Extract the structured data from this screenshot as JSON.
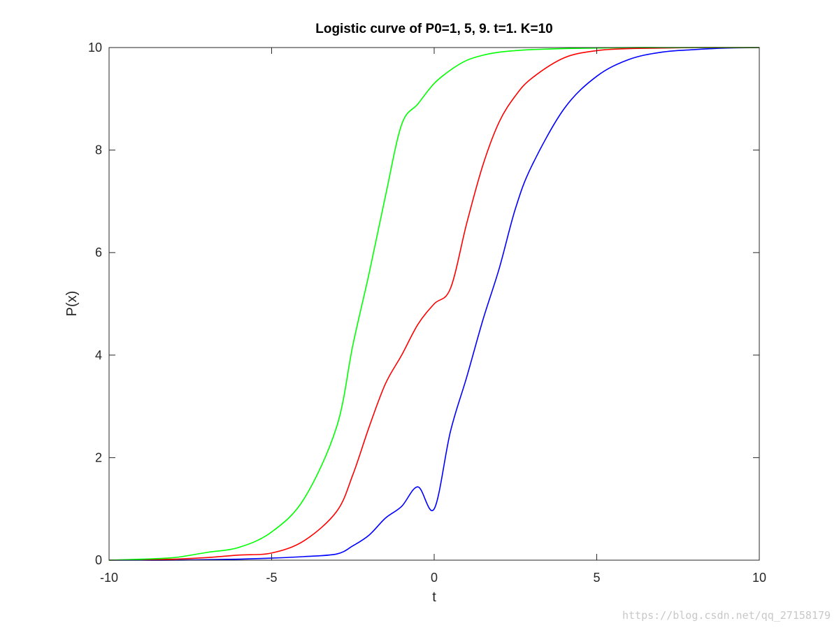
{
  "chart_data": {
    "type": "line",
    "title": "Logistic curve of P0=1, 5, 9. t=1. K=10",
    "xlabel": "t",
    "ylabel": "P(x)",
    "xlim": [
      -10,
      10
    ],
    "ylim": [
      0,
      10
    ],
    "xticks": [
      -10,
      -5,
      0,
      5,
      10
    ],
    "xtick_labels": [
      "-10",
      "-5",
      "0",
      "5",
      "10"
    ],
    "yticks": [
      0,
      2,
      4,
      6,
      8,
      10
    ],
    "ytick_labels": [
      "0",
      "2",
      "4",
      "6",
      "8",
      "10"
    ],
    "grid": false,
    "legend": "none",
    "x": [
      -10,
      -9,
      -8,
      -7,
      -6,
      -5,
      -4,
      -3,
      -2.5,
      -2,
      -1.5,
      -1,
      -0.5,
      0,
      0.5,
      1,
      1.5,
      2,
      2.5,
      3,
      4,
      5,
      6,
      7,
      8,
      9,
      10
    ],
    "series": [
      {
        "color": "#0000ff",
        "values": [
          0.0,
          0.0,
          0.0,
          0.01,
          0.02,
          0.04,
          0.07,
          0.12,
          0.28,
          0.49,
          0.82,
          1.05,
          1.43,
          1.0,
          2.51,
          3.57,
          4.69,
          5.69,
          6.86,
          7.69,
          8.81,
          9.44,
          9.77,
          9.91,
          9.96,
          9.99,
          10.0
        ]
      },
      {
        "color": "#ff0000",
        "values": [
          0.0,
          0.01,
          0.02,
          0.05,
          0.1,
          0.14,
          0.38,
          0.95,
          1.67,
          2.6,
          3.44,
          4.0,
          4.6,
          5.0,
          5.3,
          6.57,
          7.71,
          8.55,
          9.06,
          9.4,
          9.8,
          9.94,
          9.98,
          9.99,
          10.0,
          10.0,
          10.0
        ]
      },
      {
        "color": "#00ff00",
        "values": [
          0.0,
          0.02,
          0.05,
          0.15,
          0.25,
          0.55,
          1.2,
          2.6,
          4.2,
          5.6,
          7.1,
          8.5,
          8.9,
          9.3,
          9.56,
          9.75,
          9.85,
          9.91,
          9.94,
          9.96,
          9.98,
          9.99,
          10.0,
          10.0,
          10.0,
          10.0,
          10.0
        ]
      }
    ]
  },
  "watermark": "https://blog.csdn.net/qq_27158179"
}
